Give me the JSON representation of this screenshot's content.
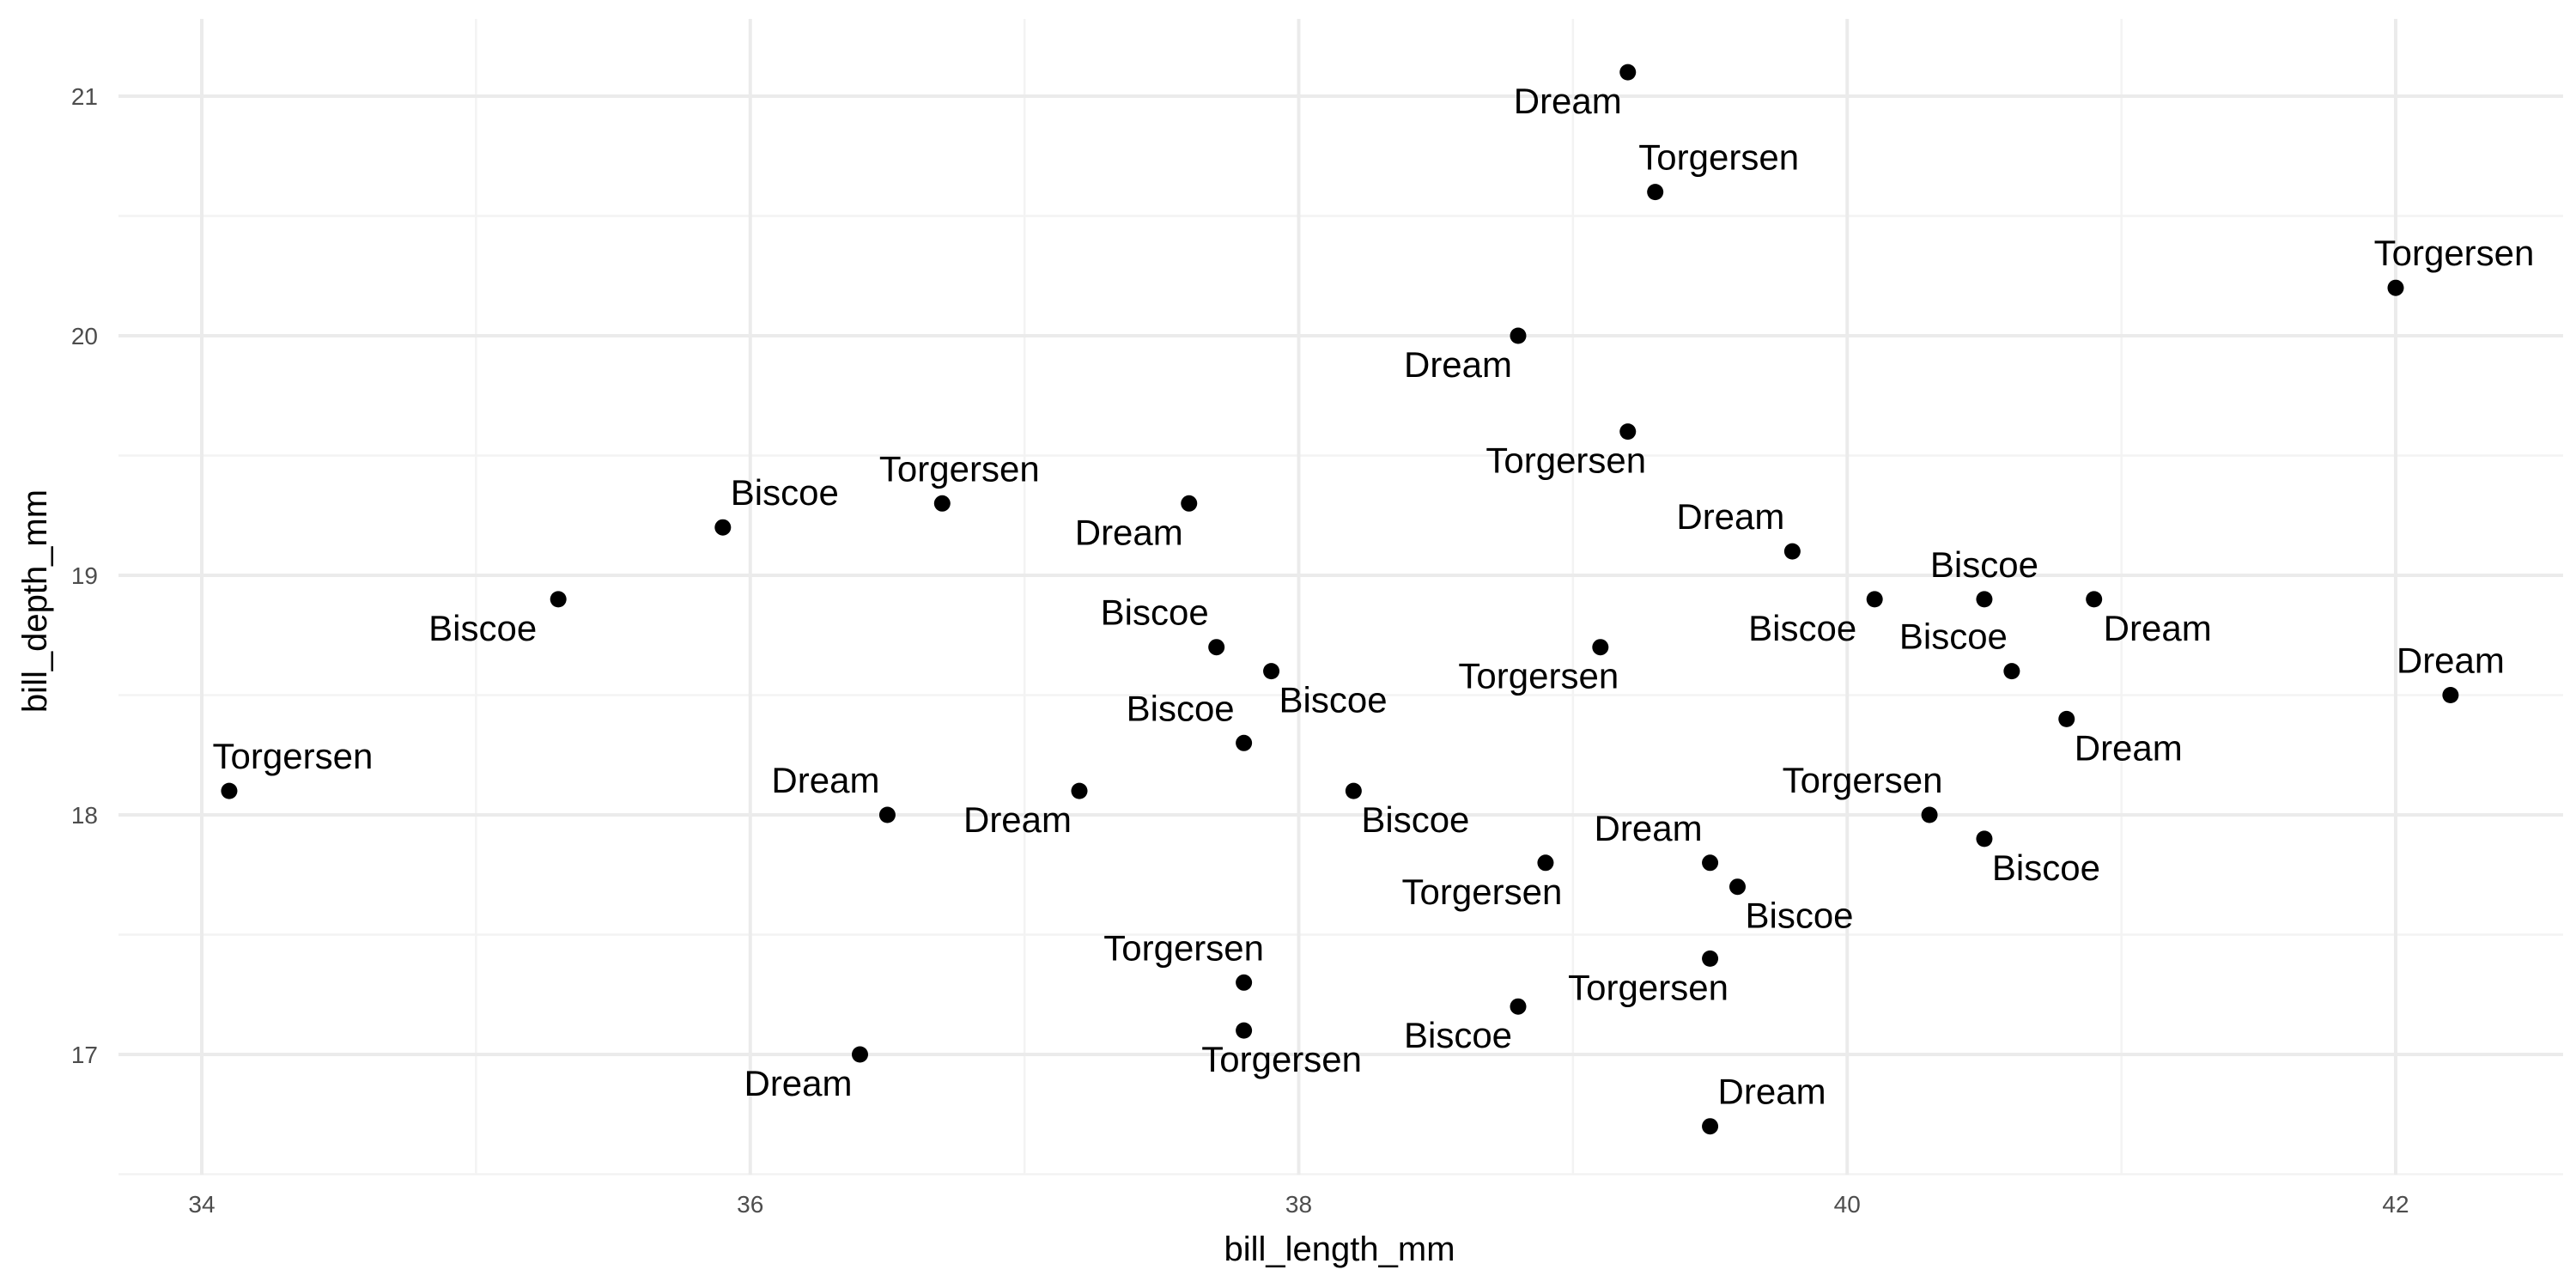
{
  "colors": {
    "point": "#000000",
    "grid_major": "#ebebeb",
    "grid_minor": "#f3f3f3",
    "tick_text": "#4d4d4d",
    "background": "#ffffff"
  },
  "chart_data": {
    "type": "scatter",
    "xlabel": "bill_length_mm",
    "ylabel": "bill_depth_mm",
    "xlim": [
      33.6,
      42.5
    ],
    "ylim": [
      16.5,
      21.3
    ],
    "x_ticks": [
      34,
      36,
      38,
      40,
      42
    ],
    "y_ticks": [
      17,
      18,
      19,
      20,
      21
    ],
    "grid": true,
    "legend": "none",
    "points": [
      {
        "x": 39.2,
        "y": 21.1,
        "label": "Dream"
      },
      {
        "x": 39.3,
        "y": 20.6,
        "label": "Torgersen"
      },
      {
        "x": 42.0,
        "y": 20.2,
        "label": "Torgersen"
      },
      {
        "x": 38.8,
        "y": 20.0,
        "label": "Dream"
      },
      {
        "x": 39.2,
        "y": 19.6,
        "label": "Torgersen"
      },
      {
        "x": 35.9,
        "y": 19.2,
        "label": "Biscoe"
      },
      {
        "x": 36.7,
        "y": 19.3,
        "label": "Torgersen"
      },
      {
        "x": 37.6,
        "y": 19.3,
        "label": "Dream"
      },
      {
        "x": 39.8,
        "y": 19.1,
        "label": "Dream"
      },
      {
        "x": 35.3,
        "y": 18.9,
        "label": "Biscoe"
      },
      {
        "x": 40.1,
        "y": 18.9,
        "label": "Biscoe"
      },
      {
        "x": 40.5,
        "y": 18.9,
        "label": "Biscoe"
      },
      {
        "x": 40.9,
        "y": 18.9,
        "label": "Dream"
      },
      {
        "x": 37.7,
        "y": 18.7,
        "label": "Biscoe"
      },
      {
        "x": 39.1,
        "y": 18.7,
        "label": "Torgersen"
      },
      {
        "x": 37.9,
        "y": 18.6,
        "label": "Biscoe"
      },
      {
        "x": 40.6,
        "y": 18.6,
        "label": "Biscoe"
      },
      {
        "x": 42.2,
        "y": 18.5,
        "label": "Dream"
      },
      {
        "x": 40.8,
        "y": 18.4,
        "label": "Dream"
      },
      {
        "x": 37.8,
        "y": 18.3,
        "label": "Biscoe"
      },
      {
        "x": 34.1,
        "y": 18.1,
        "label": "Torgersen"
      },
      {
        "x": 37.2,
        "y": 18.1,
        "label": "Dream"
      },
      {
        "x": 38.2,
        "y": 18.1,
        "label": "Biscoe"
      },
      {
        "x": 36.5,
        "y": 18.0,
        "label": "Dream"
      },
      {
        "x": 40.3,
        "y": 18.0,
        "label": "Torgersen"
      },
      {
        "x": 40.5,
        "y": 17.9,
        "label": "Biscoe"
      },
      {
        "x": 38.9,
        "y": 17.8,
        "label": "Torgersen"
      },
      {
        "x": 39.5,
        "y": 17.8,
        "label": "Dream"
      },
      {
        "x": 39.6,
        "y": 17.7,
        "label": "Biscoe"
      },
      {
        "x": 39.5,
        "y": 17.4,
        "label": "Torgersen"
      },
      {
        "x": 37.8,
        "y": 17.3,
        "label": "Torgersen"
      },
      {
        "x": 38.8,
        "y": 17.2,
        "label": "Biscoe"
      },
      {
        "x": 37.8,
        "y": 17.1,
        "label": "Torgersen"
      },
      {
        "x": 36.4,
        "y": 17.0,
        "label": "Dream"
      },
      {
        "x": 39.5,
        "y": 16.7,
        "label": "Dream"
      }
    ]
  }
}
